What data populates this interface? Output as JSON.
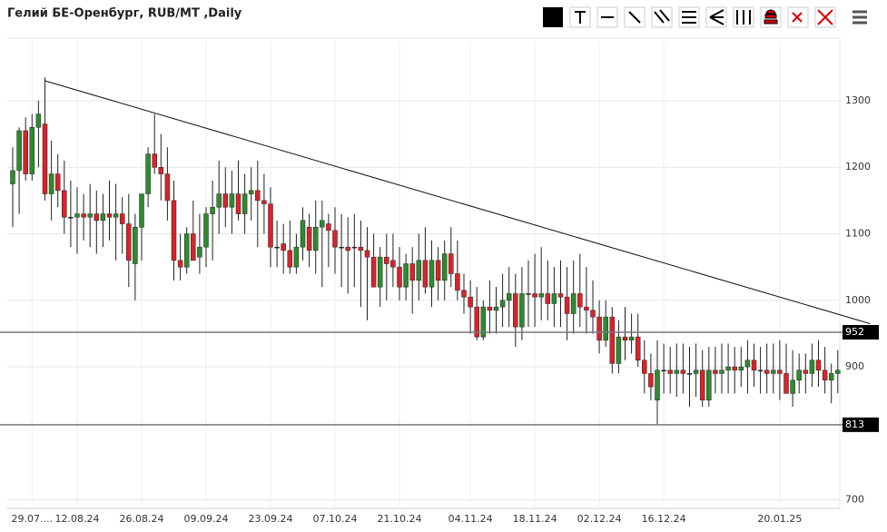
{
  "chart_data": {
    "type": "candlestick",
    "title": "Гелий БЕ-Оренбург, RUB/MT ,Daily",
    "up_color": "#2e8b2e",
    "down_color": "#d9232b",
    "ylim": [
      690,
      1390
    ],
    "yticks": [
      700,
      900,
      1000,
      1100,
      1200,
      1300
    ],
    "grid": true,
    "categories": [
      null,
      null,
      null,
      "29.07....",
      null,
      null,
      null,
      null,
      null,
      null,
      "12.08.24",
      null,
      null,
      null,
      null,
      null,
      null,
      null,
      null,
      null,
      "26.08.24",
      null,
      null,
      null,
      null,
      null,
      null,
      null,
      null,
      null,
      "09.09.24",
      null,
      null,
      null,
      null,
      null,
      null,
      null,
      null,
      null,
      "23.09.24",
      null,
      null,
      null,
      null,
      null,
      null,
      null,
      null,
      null,
      "07.10.24",
      null,
      null,
      null,
      null,
      null,
      null,
      null,
      null,
      null,
      "21.10.24",
      null,
      null,
      null,
      null,
      null,
      null,
      null,
      null,
      null,
      null,
      "04.11.24",
      null,
      null,
      null,
      null,
      null,
      null,
      null,
      null,
      null,
      "18.11.24",
      null,
      null,
      null,
      null,
      null,
      null,
      null,
      null,
      null,
      "02.12.24",
      null,
      null,
      null,
      null,
      null,
      null,
      null,
      null,
      null,
      "16.12.24",
      null,
      null,
      null,
      null,
      null,
      null,
      null,
      null,
      null,
      null,
      null,
      null,
      null,
      null,
      null,
      null,
      null,
      "20.01.25",
      null,
      null,
      null,
      null,
      null,
      null,
      null,
      null,
      null
    ],
    "candles": [
      [
        1175,
        1230,
        1110,
        1195
      ],
      [
        1195,
        1260,
        1130,
        1255
      ],
      [
        1255,
        1275,
        1180,
        1190
      ],
      [
        1190,
        1280,
        1180,
        1260
      ],
      [
        1260,
        1300,
        1200,
        1280
      ],
      [
        1265,
        1335,
        1150,
        1160
      ],
      [
        1160,
        1240,
        1120,
        1190
      ],
      [
        1190,
        1220,
        1140,
        1165
      ],
      [
        1165,
        1210,
        1100,
        1125
      ],
      [
        1125,
        1180,
        1080,
        1125
      ],
      [
        1125,
        1170,
        1070,
        1130
      ],
      [
        1130,
        1160,
        1090,
        1125
      ],
      [
        1125,
        1175,
        1080,
        1130
      ],
      [
        1130,
        1165,
        1070,
        1120
      ],
      [
        1120,
        1160,
        1080,
        1130
      ],
      [
        1130,
        1180,
        1090,
        1125
      ],
      [
        1125,
        1175,
        1060,
        1130
      ],
      [
        1130,
        1155,
        1070,
        1115
      ],
      [
        1115,
        1160,
        1020,
        1060
      ],
      [
        1055,
        1130,
        1000,
        1110
      ],
      [
        1110,
        1160,
        1060,
        1160
      ],
      [
        1160,
        1230,
        1140,
        1220
      ],
      [
        1220,
        1280,
        1190,
        1200
      ],
      [
        1200,
        1250,
        1150,
        1190
      ],
      [
        1190,
        1230,
        1120,
        1150
      ],
      [
        1150,
        1180,
        1030,
        1060
      ],
      [
        1060,
        1100,
        1030,
        1050
      ],
      [
        1050,
        1110,
        1040,
        1100
      ],
      [
        1100,
        1150,
        1060,
        1060
      ],
      [
        1065,
        1130,
        1040,
        1080
      ],
      [
        1080,
        1140,
        1050,
        1130
      ],
      [
        1130,
        1180,
        1060,
        1140
      ],
      [
        1140,
        1210,
        1100,
        1160
      ],
      [
        1160,
        1200,
        1110,
        1140
      ],
      [
        1140,
        1195,
        1100,
        1160
      ],
      [
        1160,
        1210,
        1120,
        1130
      ],
      [
        1130,
        1190,
        1100,
        1160
      ],
      [
        1160,
        1200,
        1120,
        1165
      ],
      [
        1165,
        1210,
        1080,
        1150
      ],
      [
        1150,
        1190,
        1100,
        1145
      ],
      [
        1145,
        1170,
        1050,
        1080
      ],
      [
        1080,
        1120,
        1050,
        1080
      ],
      [
        1085,
        1115,
        1040,
        1075
      ],
      [
        1075,
        1120,
        1040,
        1050
      ],
      [
        1050,
        1100,
        1040,
        1080
      ],
      [
        1080,
        1140,
        1060,
        1120
      ],
      [
        1110,
        1130,
        1050,
        1075
      ],
      [
        1075,
        1150,
        1040,
        1110
      ],
      [
        1110,
        1150,
        1020,
        1120
      ],
      [
        1115,
        1130,
        1050,
        1105
      ],
      [
        1105,
        1140,
        1040,
        1080
      ],
      [
        1080,
        1130,
        1020,
        1080
      ],
      [
        1080,
        1125,
        1010,
        1075
      ],
      [
        1080,
        1130,
        1020,
        1080
      ],
      [
        1080,
        1120,
        990,
        1075
      ],
      [
        1075,
        1110,
        970,
        1065
      ],
      [
        1065,
        1100,
        1020,
        1020
      ],
      [
        1020,
        1080,
        990,
        1065
      ],
      [
        1065,
        1100,
        1000,
        1055
      ],
      [
        1060,
        1100,
        1020,
        1050
      ],
      [
        1050,
        1080,
        1000,
        1020
      ],
      [
        1020,
        1070,
        1000,
        1055
      ],
      [
        1055,
        1080,
        980,
        1030
      ],
      [
        1030,
        1100,
        1000,
        1060
      ],
      [
        1060,
        1110,
        1010,
        1020
      ],
      [
        1020,
        1090,
        990,
        1060
      ],
      [
        1060,
        1080,
        1000,
        1030
      ],
      [
        1030,
        1090,
        1000,
        1070
      ],
      [
        1070,
        1110,
        1020,
        1040
      ],
      [
        1040,
        1090,
        1000,
        1015
      ],
      [
        1015,
        1040,
        980,
        1005
      ],
      [
        1005,
        1030,
        950,
        990
      ],
      [
        990,
        1020,
        940,
        945
      ],
      [
        945,
        1000,
        940,
        990
      ],
      [
        990,
        1030,
        950,
        985
      ],
      [
        985,
        1020,
        950,
        990
      ],
      [
        990,
        1040,
        960,
        1000
      ],
      [
        1000,
        1050,
        960,
        1010
      ],
      [
        1010,
        1040,
        930,
        960
      ],
      [
        960,
        1050,
        940,
        1010
      ],
      [
        1010,
        1060,
        960,
        1010
      ],
      [
        1010,
        1070,
        960,
        1005
      ],
      [
        1005,
        1080,
        970,
        1010
      ],
      [
        1010,
        1060,
        970,
        995
      ],
      [
        995,
        1050,
        960,
        1010
      ],
      [
        1010,
        1060,
        960,
        1005
      ],
      [
        1005,
        1050,
        940,
        980
      ],
      [
        980,
        1060,
        950,
        1010
      ],
      [
        1010,
        1070,
        960,
        990
      ],
      [
        990,
        1050,
        950,
        985
      ],
      [
        985,
        1030,
        950,
        975
      ],
      [
        975,
        1000,
        920,
        940
      ],
      [
        940,
        1000,
        930,
        975
      ],
      [
        975,
        990,
        890,
        905
      ],
      [
        905,
        970,
        890,
        945
      ],
      [
        945,
        990,
        910,
        940
      ],
      [
        940,
        980,
        920,
        945
      ],
      [
        945,
        980,
        900,
        910
      ],
      [
        910,
        940,
        860,
        890
      ],
      [
        890,
        920,
        850,
        870
      ],
      [
        850,
        940,
        813,
        895
      ],
      [
        895,
        935,
        860,
        895
      ],
      [
        895,
        930,
        860,
        890
      ],
      [
        890,
        935,
        855,
        895
      ],
      [
        895,
        935,
        860,
        890
      ],
      [
        890,
        930,
        840,
        890
      ],
      [
        890,
        935,
        855,
        895
      ],
      [
        895,
        925,
        840,
        850
      ],
      [
        850,
        930,
        840,
        895
      ],
      [
        895,
        930,
        860,
        890
      ],
      [
        890,
        935,
        860,
        895
      ],
      [
        895,
        935,
        860,
        900
      ],
      [
        900,
        930,
        860,
        895
      ],
      [
        895,
        930,
        870,
        900
      ],
      [
        900,
        940,
        860,
        910
      ],
      [
        910,
        935,
        870,
        895
      ],
      [
        895,
        930,
        860,
        895
      ],
      [
        895,
        935,
        860,
        890
      ],
      [
        890,
        935,
        860,
        895
      ],
      [
        895,
        940,
        850,
        890
      ],
      [
        890,
        935,
        860,
        860
      ],
      [
        860,
        925,
        840,
        880
      ],
      [
        880,
        920,
        860,
        895
      ],
      [
        895,
        920,
        860,
        890
      ],
      [
        890,
        935,
        870,
        910
      ],
      [
        910,
        940,
        870,
        895
      ],
      [
        895,
        930,
        860,
        880
      ],
      [
        880,
        905,
        845,
        890
      ],
      [
        890,
        925,
        860,
        895
      ]
    ],
    "levels": [
      952,
      813
    ],
    "trendline": {
      "x": [
        5,
        133
      ],
      "y": [
        1330,
        965
      ]
    }
  }
}
